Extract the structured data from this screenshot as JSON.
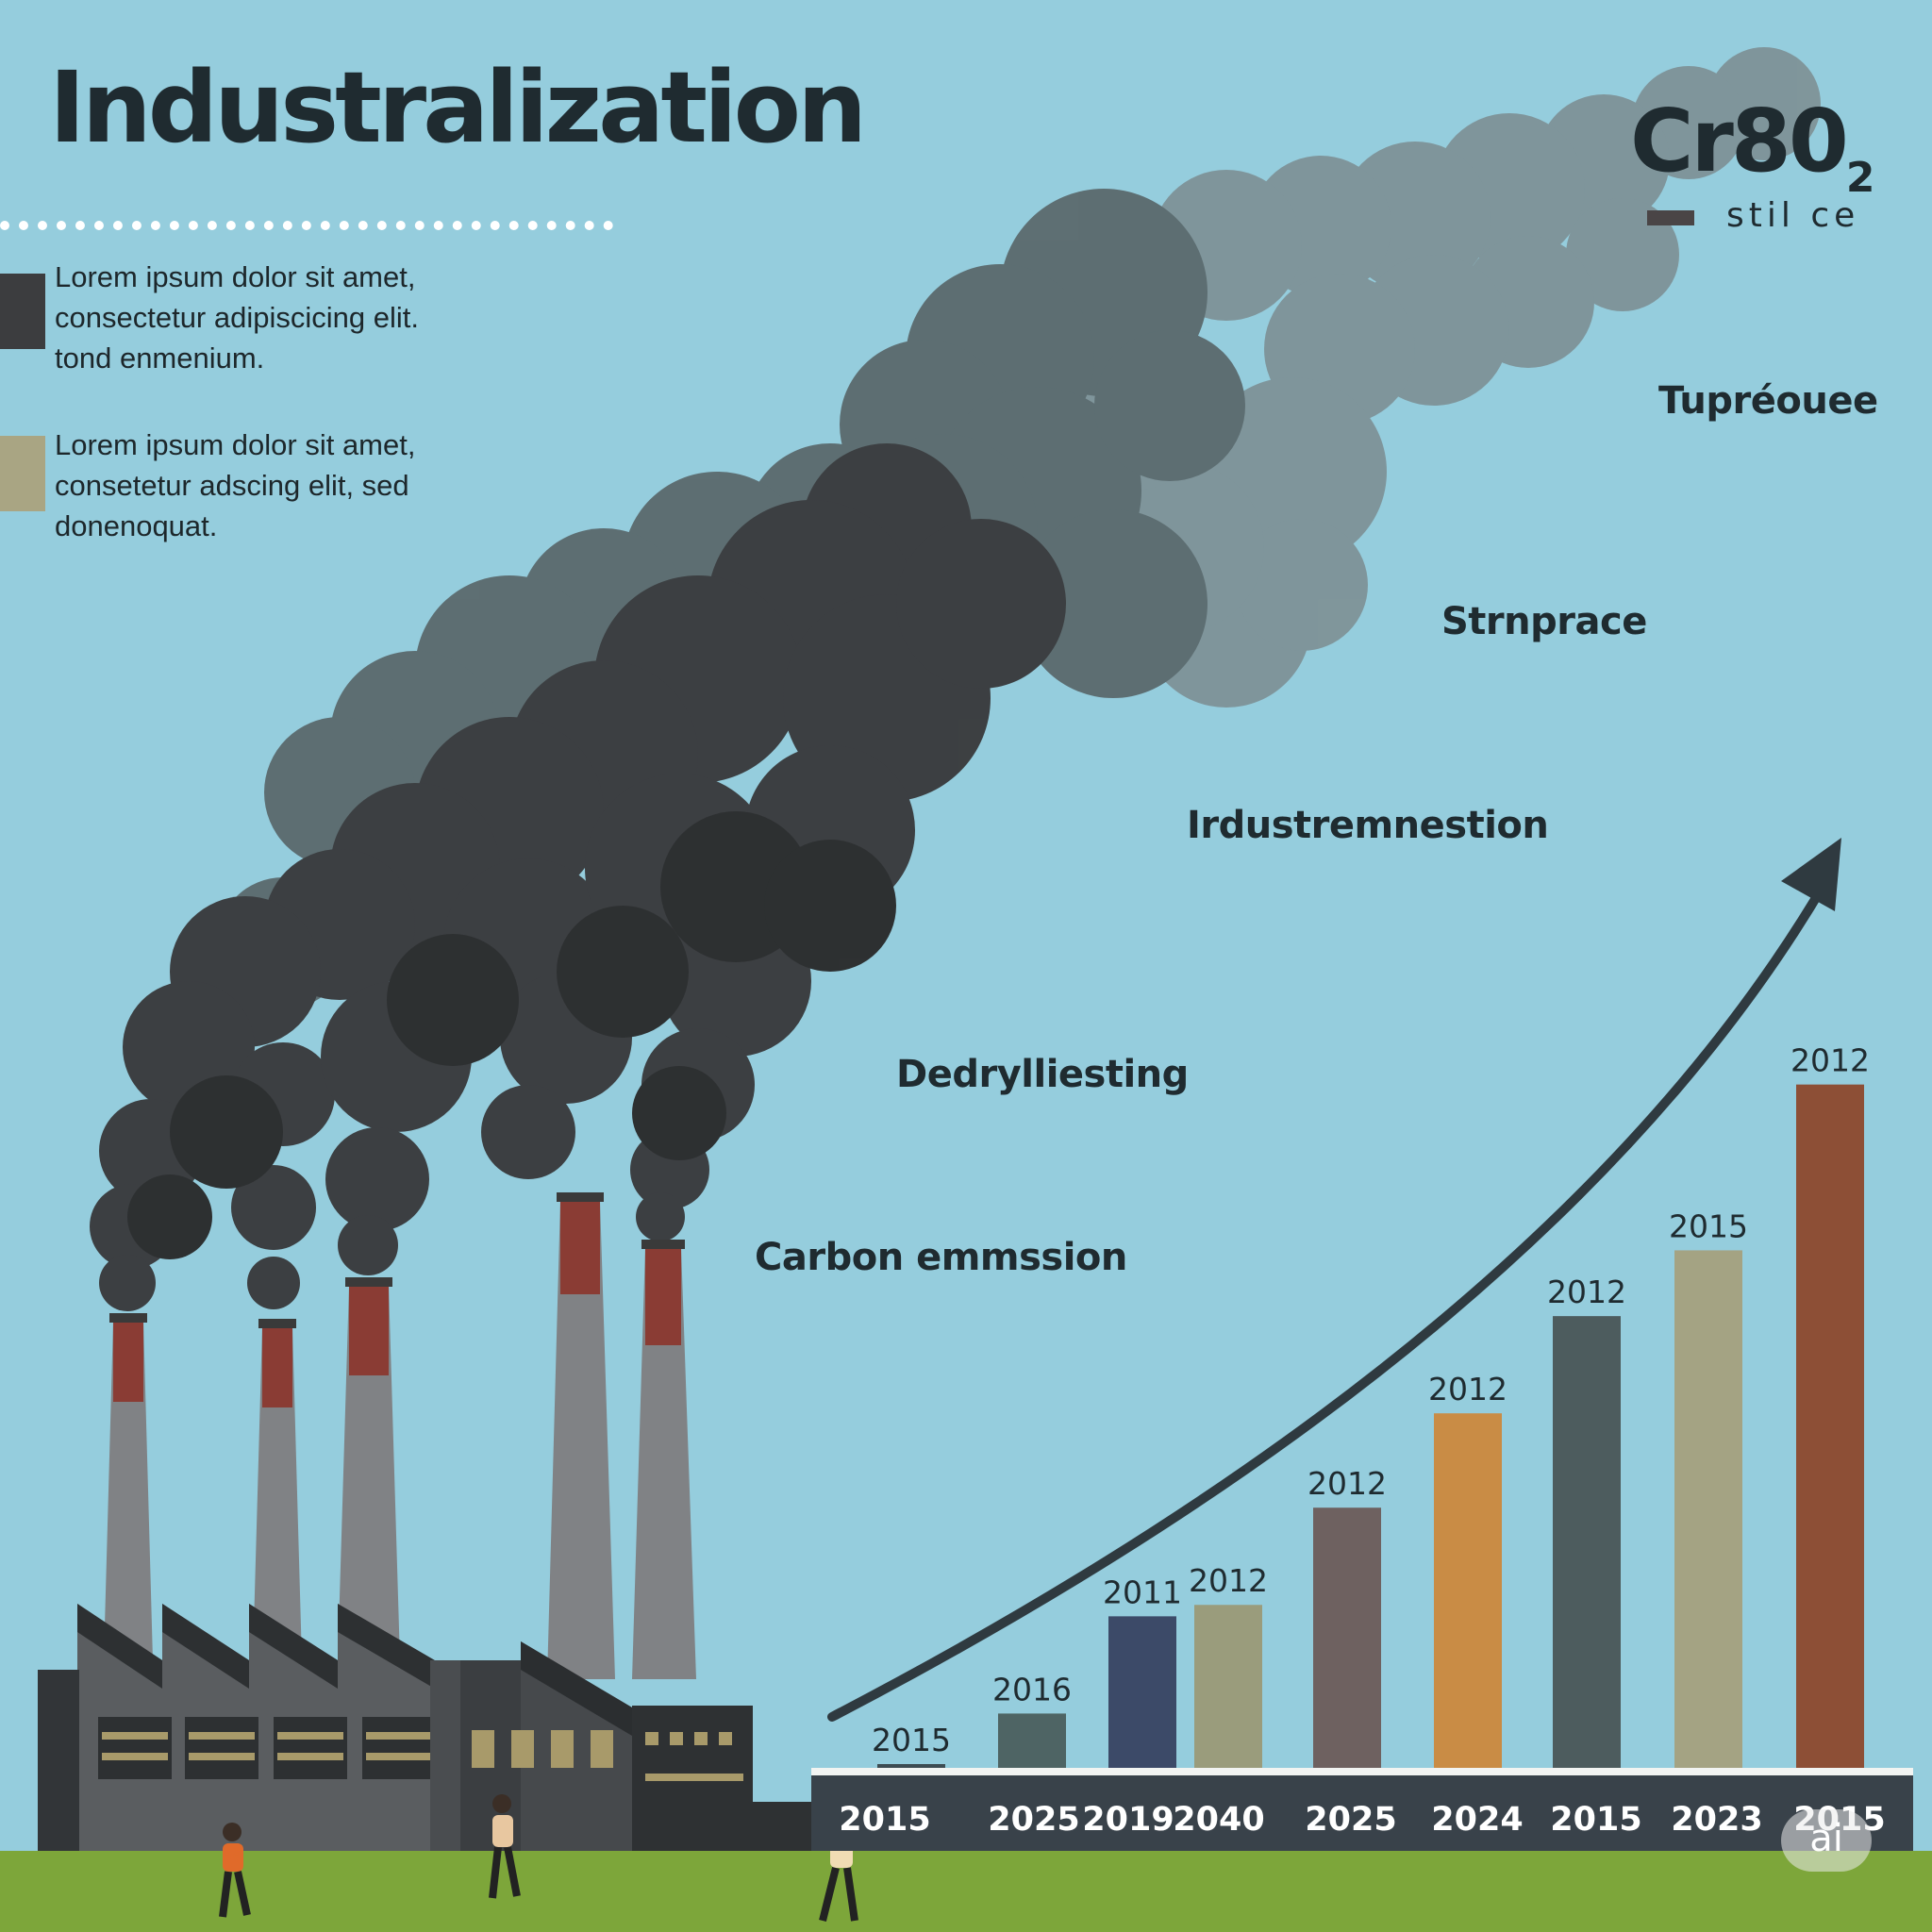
{
  "title": "Industralization",
  "legend": [
    {
      "text": "Lorem ipsum dolor sit amet, consectetur adipiscicing elit. tond enmenium.",
      "color": "#3c3d3f"
    },
    {
      "text": "Lorem ipsum dolor sit amet, consetetur adscing elit, sed donenoquat.",
      "color": "#a9a583"
    }
  ],
  "stage_labels": [
    "Carbon emmssion",
    "Dedrylliesting",
    "Irdustremnestion",
    "Strnprace",
    "Tupréouee"
  ],
  "co2": {
    "title": "Cr80",
    "subscript": "2",
    "subtitle": "stil ce"
  },
  "watermark": "ai",
  "chart_data": {
    "type": "bar",
    "categories": [
      "2015",
      "2025",
      "2019",
      "2040",
      "2025",
      "2024",
      "2015",
      "2023",
      "2015"
    ],
    "values": [
      1,
      19,
      53,
      57,
      91,
      124,
      158,
      181,
      239
    ],
    "bar_labels": [
      "2015",
      "2016",
      "2011",
      "2012",
      "2012",
      "2012",
      "2012",
      "2015",
      "2012"
    ],
    "colors": [
      "#3d4c52",
      "#4e6464",
      "#3c4a68",
      "#9a9c7c",
      "#6e6160",
      "#c98c45",
      "#4d5c5e",
      "#a4a383",
      "#8d4f36"
    ],
    "ylim": [
      0,
      260
    ],
    "trend": "rising arrow"
  }
}
